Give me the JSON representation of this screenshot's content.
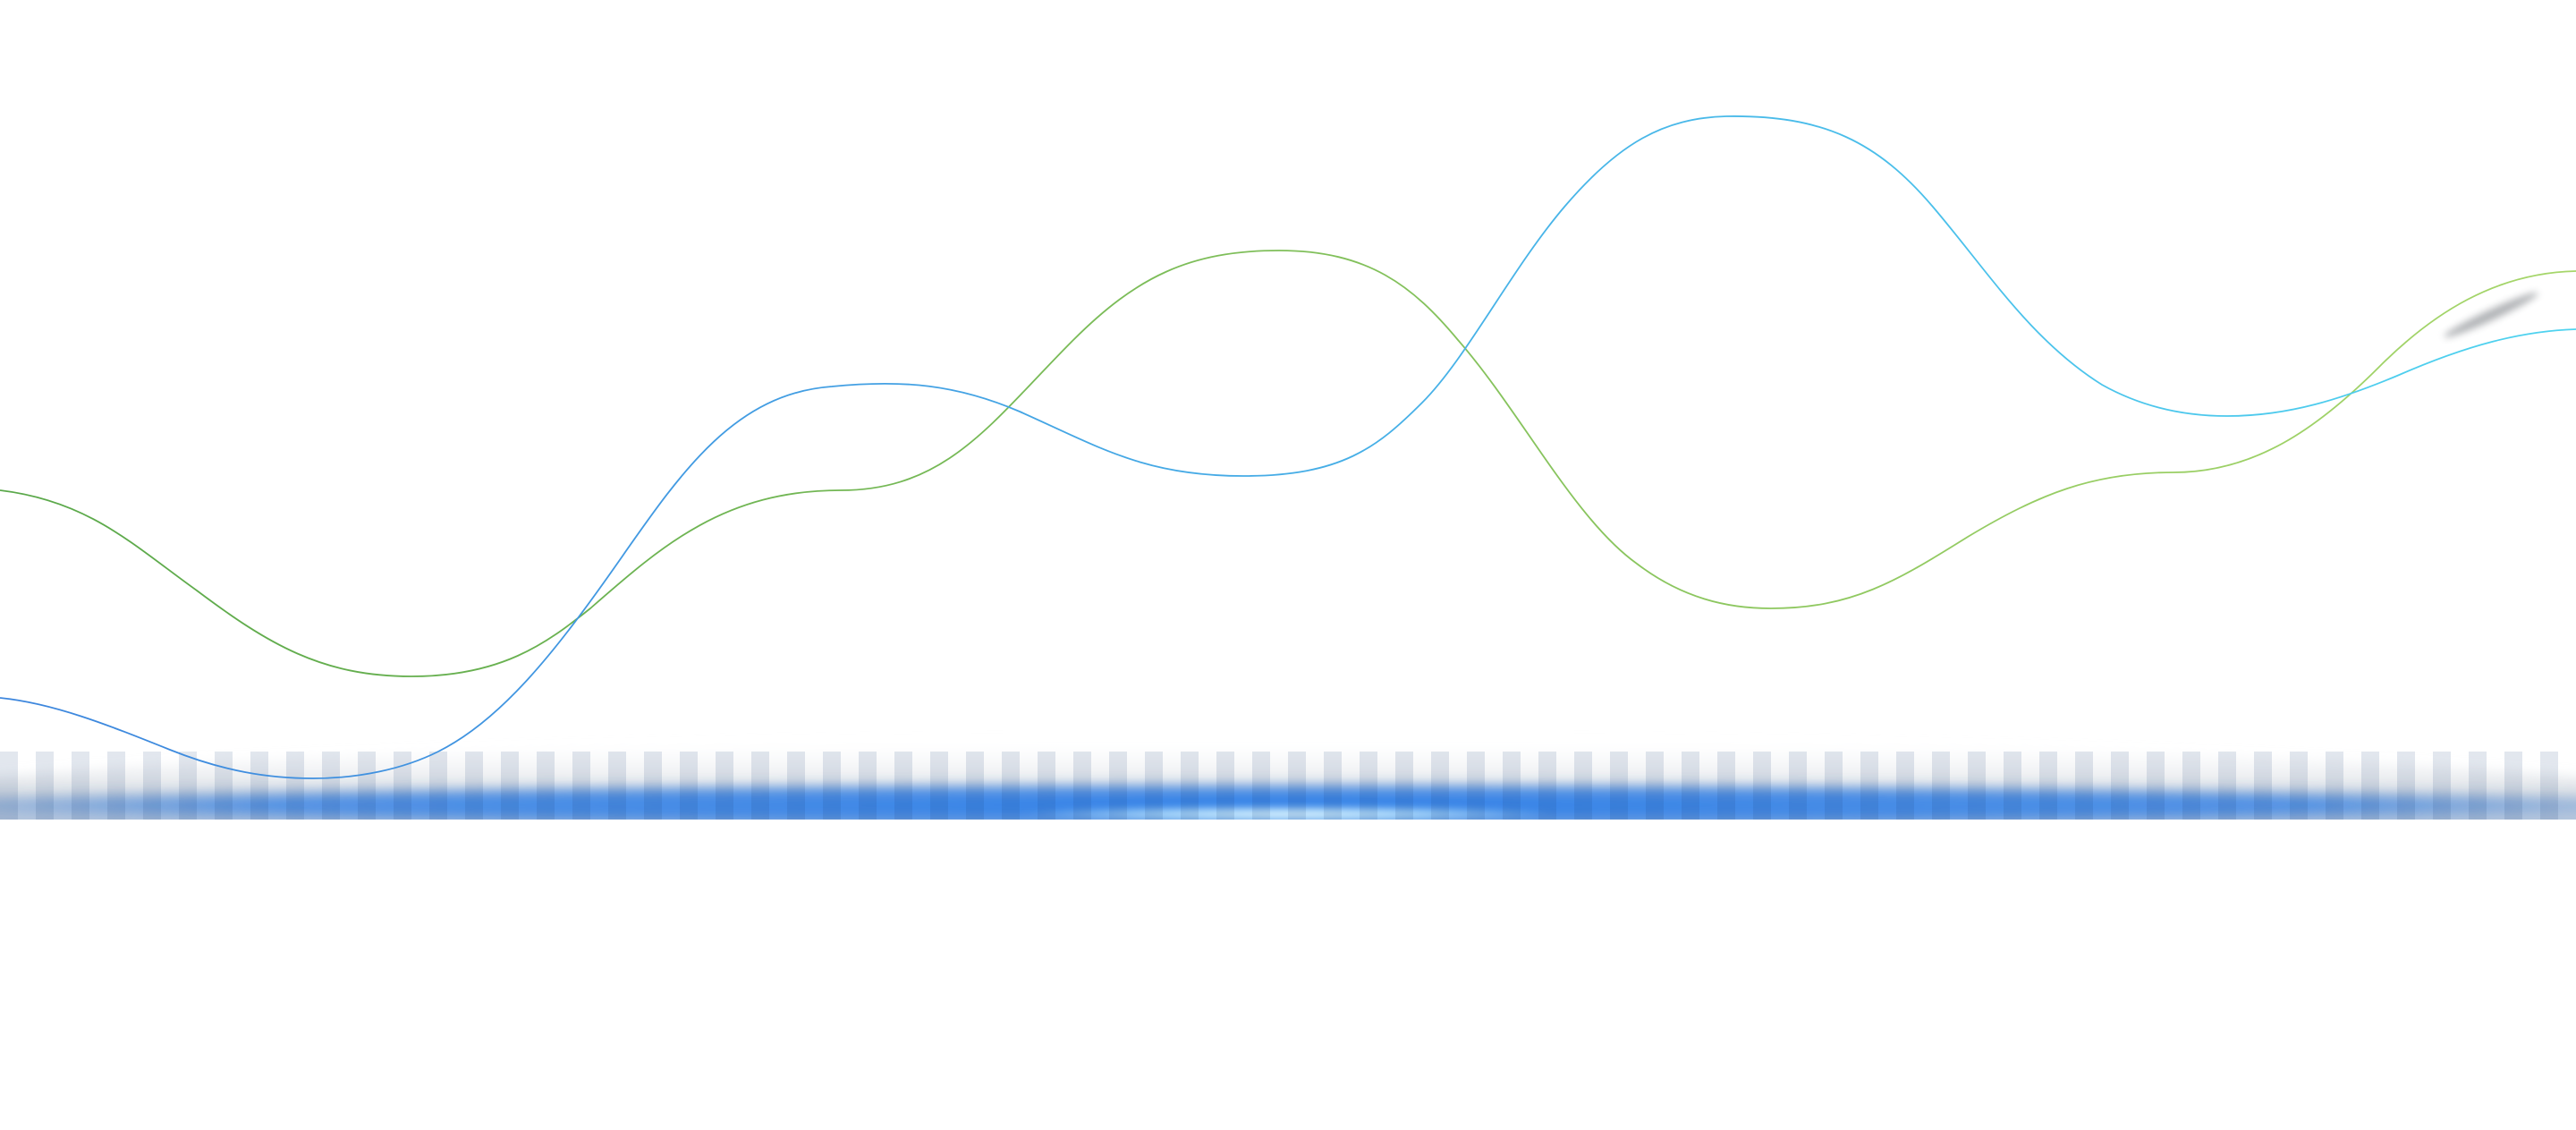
{
  "scene": {
    "background": "#ffffff",
    "glow_band": {
      "colors": [
        "#2f7fe8",
        "#6fa3d4",
        "#9fb2c8",
        "#ffffff"
      ],
      "highlight": "#bfe9ff"
    },
    "lines": [
      {
        "name": "green-wave",
        "gradient_start": "#5aa84a",
        "gradient_end": "#a6d66a"
      },
      {
        "name": "blue-wave",
        "gradient_start": "#3d86dd",
        "gradient_end": "#4fd3ef"
      }
    ]
  }
}
